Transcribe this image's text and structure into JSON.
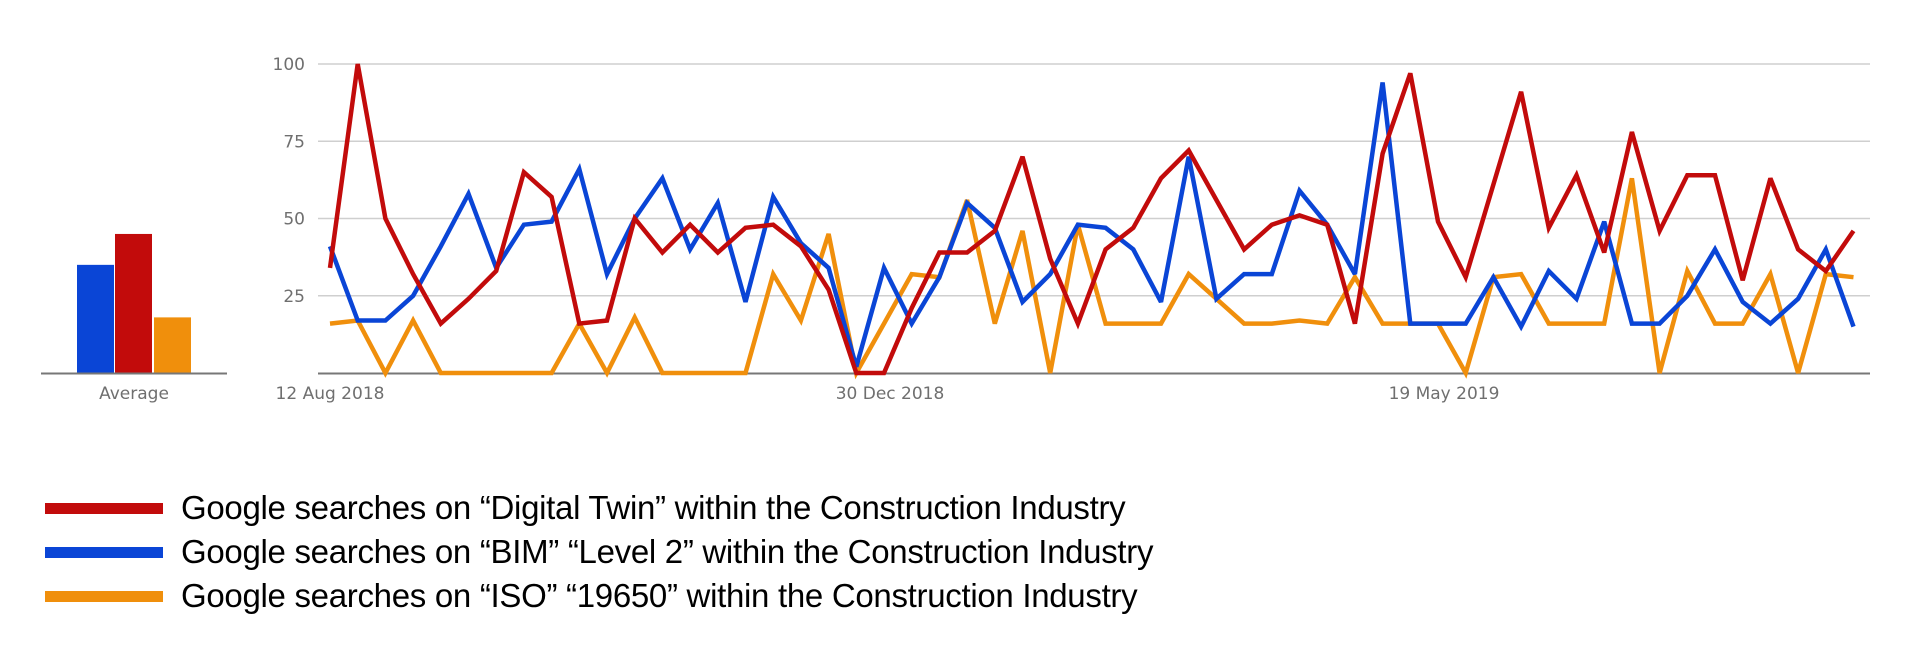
{
  "chart_data": [
    {
      "type": "bar",
      "title": "",
      "categories": [
        "Average"
      ],
      "xlabel": "Average",
      "ylim": [
        0,
        100
      ],
      "series": [
        {
          "name": "BIM Level 2",
          "color": "#0a45d6",
          "values": [
            35
          ]
        },
        {
          "name": "Digital Twin",
          "color": "#c20b0b",
          "values": [
            45
          ]
        },
        {
          "name": "ISO 19650",
          "color": "#f08f0c",
          "values": [
            18
          ]
        }
      ]
    },
    {
      "type": "line",
      "title": "",
      "xlabel": "",
      "ylabel": "",
      "ylim": [
        0,
        100
      ],
      "yticks": [
        "100",
        "75",
        "50",
        "25"
      ],
      "grid": true,
      "x_tick_labels": [
        {
          "index": 0,
          "label": "12 Aug 2018"
        },
        {
          "index": 20,
          "label": "30 Dec 2018"
        },
        {
          "index": 40,
          "label": "19 May 2019"
        }
      ],
      "x_count": 56,
      "series": [
        {
          "name": "Digital Twin",
          "color": "#c20b0b",
          "values": [
            34,
            100,
            50,
            32,
            16,
            24,
            33,
            65,
            57,
            16,
            17,
            50,
            39,
            48,
            39,
            47,
            48,
            41,
            27,
            0,
            0,
            21,
            39,
            39,
            46,
            70,
            37,
            16,
            40,
            47,
            63,
            72,
            56,
            40,
            48,
            51,
            48,
            16,
            71,
            97,
            49,
            31,
            61,
            91,
            47,
            64,
            39,
            78,
            46,
            64,
            64,
            30,
            63,
            40,
            33,
            46
          ]
        },
        {
          "name": "BIM Level 2",
          "color": "#0a45d6",
          "values": [
            41,
            17,
            17,
            25,
            41,
            58,
            34,
            48,
            49,
            66,
            32,
            50,
            63,
            40,
            55,
            23,
            57,
            42,
            34,
            2,
            34,
            16,
            31,
            55,
            47,
            23,
            32,
            48,
            47,
            40,
            23,
            70,
            24,
            32,
            32,
            59,
            48,
            32,
            94,
            16,
            16,
            16,
            31,
            15,
            33,
            24,
            49,
            16,
            16,
            25,
            40,
            23,
            16,
            24,
            40,
            15
          ]
        },
        {
          "name": "ISO 19650",
          "color": "#f08f0c",
          "values": [
            16,
            17,
            0,
            17,
            0,
            0,
            0,
            0,
            0,
            16,
            0,
            18,
            0,
            0,
            0,
            0,
            32,
            17,
            45,
            0,
            16,
            32,
            31,
            56,
            16,
            46,
            0,
            48,
            16,
            16,
            16,
            32,
            24,
            16,
            16,
            17,
            16,
            31,
            16,
            16,
            16,
            0,
            31,
            32,
            16,
            16,
            16,
            63,
            0,
            33,
            16,
            16,
            32,
            0,
            32,
            31
          ]
        }
      ]
    }
  ],
  "average_label": "Average",
  "legend": [
    {
      "label": "Google searches on “Digital Twin” within the Construction Industry",
      "color": "#c20b0b"
    },
    {
      "label": "Google searches on “BIM” “Level 2” within the Construction Industry",
      "color": "#0a45d6"
    },
    {
      "label": "Google searches on “ISO” “19650” within the Construction Industry",
      "color": "#f08f0c"
    }
  ]
}
